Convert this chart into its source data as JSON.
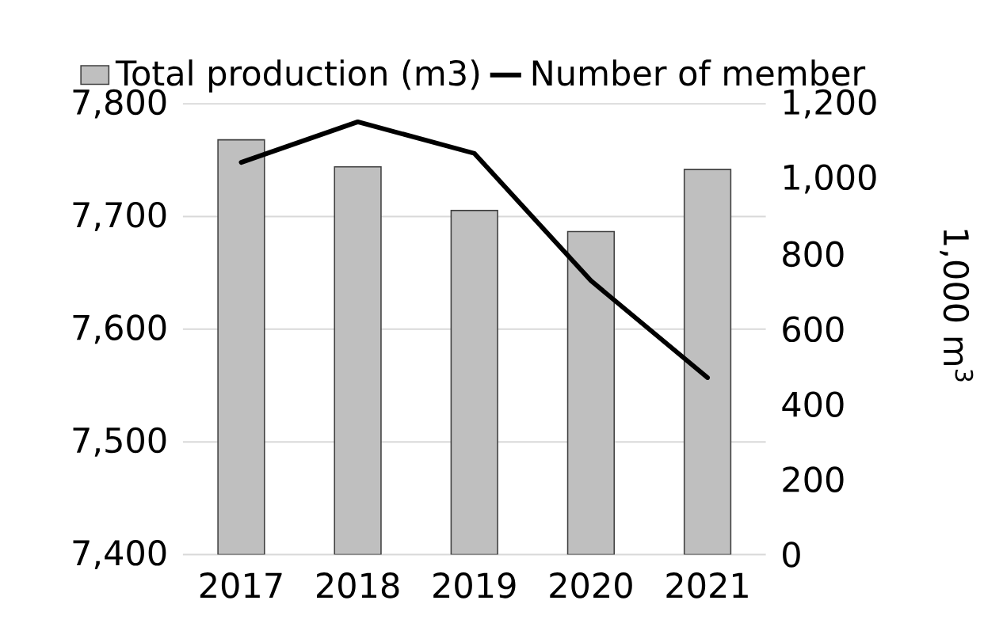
{
  "chart_data": {
    "type": "bar",
    "categories": [
      "2017",
      "2018",
      "2019",
      "2020",
      "2021"
    ],
    "series": [
      {
        "name": "Total production (m3)",
        "axis": "y2",
        "color": "#bfbfbf",
        "values": [
          1104,
          1032,
          916,
          860,
          1025
        ]
      },
      {
        "name": "Number of member",
        "type": "line",
        "color": "#000000",
        "values": [
          7748,
          7784,
          7756,
          7643,
          7557
        ]
      }
    ],
    "ylim": [
      7400,
      7800
    ],
    "yticks": [
      {
        "value": 7400,
        "label": "7,400"
      },
      {
        "value": 7500,
        "label": "7,500"
      },
      {
        "value": 7600,
        "label": "7,600"
      },
      {
        "value": 7700,
        "label": "7,700"
      },
      {
        "value": 7800,
        "label": "7,800"
      }
    ],
    "y2lim": [
      0,
      1200
    ],
    "y2ticks": [
      0,
      200,
      400,
      600,
      800,
      {
        "value": 1000,
        "label": "1,000"
      },
      {
        "value": 1200,
        "label": "1,200"
      }
    ],
    "y2label": "1,000 m$^{3}$",
    "grid": "y",
    "legend": "top"
  }
}
